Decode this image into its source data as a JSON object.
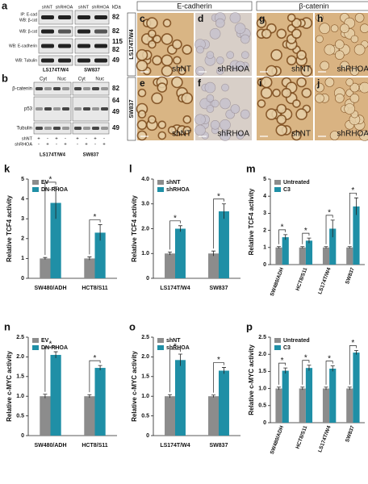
{
  "blot_a": {
    "letter": "a",
    "columns": [
      "shNT",
      "shRHOA",
      "shNT",
      "shRHOA"
    ],
    "kda_label": "kDa",
    "rows": [
      {
        "label": [
          "IP: E-cad",
          "WB: β-cat"
        ],
        "markers": [
          82
        ]
      },
      {
        "label": [
          "WB: β-cat"
        ],
        "markers": [
          82
        ]
      },
      {
        "label": [
          "WB: E-cadherin"
        ],
        "markers": [
          115,
          82
        ]
      },
      {
        "label": [
          "WB: Tubulin"
        ],
        "markers": [
          49
        ]
      }
    ],
    "cell_lines": [
      "LS174T/W4",
      "SW837"
    ]
  },
  "blot_b": {
    "letter": "b",
    "fractions": [
      "Cyt",
      "Nuc",
      "Cyt",
      "Nuc"
    ],
    "rows": [
      {
        "label": "β-catenin",
        "markers": [
          82
        ]
      },
      {
        "label": "p53",
        "markers": [
          64,
          49
        ]
      },
      {
        "label": "Tubulin",
        "markers": [
          49
        ]
      }
    ],
    "treatments": [
      {
        "name": "shNT",
        "signs": [
          "+",
          "-",
          "+",
          "-",
          "+",
          "-",
          "+",
          "-"
        ]
      },
      {
        "name": "shRHOA",
        "signs": [
          "-",
          "+",
          "-",
          "+",
          "-",
          "+",
          "-",
          "+"
        ]
      }
    ],
    "cell_lines": [
      "LS174T/W4",
      "SW837"
    ]
  },
  "micrographs": {
    "headers": [
      "E-cadherin",
      "β-catenin"
    ],
    "rows": [
      "LS174T/W4",
      "SW837"
    ],
    "panels": [
      {
        "letter": "c",
        "label": "shNT"
      },
      {
        "letter": "d",
        "label": "shRHOA"
      },
      {
        "letter": "g",
        "label": "shNT"
      },
      {
        "letter": "h",
        "label": "shRHOA"
      },
      {
        "letter": "e",
        "label": "shNT"
      },
      {
        "letter": "f",
        "label": "shRHOA"
      },
      {
        "letter": "i",
        "label": "shNT"
      },
      {
        "letter": "j",
        "label": "shRHOA"
      }
    ]
  },
  "chart_data": [
    {
      "type": "bar",
      "label": "k",
      "y_label": "Relative TCF4 activity",
      "categories": [
        "SW480/ADH",
        "HCT8/S11"
      ],
      "series": [
        {
          "name": "EV",
          "color": "#8c8c8c",
          "values": [
            1,
            1
          ],
          "errors": [
            0.05,
            0.08
          ]
        },
        {
          "name": "DN-RHOA",
          "color": "#1f8fa6",
          "values": [
            3.8,
            2.3
          ],
          "errors": [
            0.8,
            0.4
          ]
        }
      ],
      "ylim": [
        0,
        5
      ],
      "yticks": [
        0,
        1,
        2,
        3,
        4,
        5
      ],
      "annotation": "*"
    },
    {
      "type": "bar",
      "label": "l",
      "y_label": "Relative TCF4 activity",
      "categories": [
        "LS174T/W4",
        "SW837"
      ],
      "series": [
        {
          "name": "shNT",
          "color": "#8c8c8c",
          "values": [
            1,
            1
          ],
          "errors": [
            0.06,
            0.1
          ]
        },
        {
          "name": "shRHOA",
          "color": "#1f8fa6",
          "values": [
            2.0,
            2.7
          ],
          "errors": [
            0.12,
            0.3
          ]
        }
      ],
      "ylim": [
        0,
        4
      ],
      "yticks": [
        0,
        {
          "value": 1,
          "label": "1.0"
        },
        {
          "value": 2,
          "label": "2.0"
        },
        {
          "value": 3,
          "label": "3.0"
        },
        {
          "value": 4,
          "label": "4.0"
        }
      ],
      "annotation": "*"
    },
    {
      "type": "bar",
      "label": "m",
      "y_label": "Relative TCF4 activity",
      "categories": [
        "SW480/ADH",
        "HCT8/S11",
        "LS174T/W4",
        "SW837"
      ],
      "series": [
        {
          "name": "Untreated",
          "color": "#8c8c8c",
          "values": [
            1,
            1,
            1,
            1
          ],
          "errors": [
            0.05,
            0.05,
            0.05,
            0.05
          ]
        },
        {
          "name": "C3",
          "color": "#1f8fa6",
          "values": [
            1.6,
            1.4,
            2.1,
            3.4
          ],
          "errors": [
            0.15,
            0.15,
            0.5,
            0.5
          ]
        }
      ],
      "ylim": [
        0,
        5
      ],
      "yticks": [
        0,
        1,
        2,
        3,
        4,
        5
      ],
      "annotation": "*"
    },
    {
      "type": "bar",
      "label": "n",
      "y_label": "Relative c-MYC activity",
      "categories": [
        "SW480/ADH",
        "HCT8/S11"
      ],
      "series": [
        {
          "name": "EV",
          "color": "#8c8c8c",
          "values": [
            1,
            1
          ],
          "errors": [
            0.05,
            0.04
          ]
        },
        {
          "name": "DN-RHOA",
          "color": "#1f8fa6",
          "values": [
            2.05,
            1.72
          ],
          "errors": [
            0.08,
            0.06
          ]
        }
      ],
      "ylim": [
        0,
        2.5
      ],
      "yticks": [
        0,
        0.5,
        {
          "value": 1,
          "label": "1.0"
        },
        1.5,
        {
          "value": 2,
          "label": "2.0"
        },
        2.5
      ],
      "annotation": "*"
    },
    {
      "type": "bar",
      "label": "o",
      "y_label": "Relative c-MYC activity",
      "categories": [
        "LS174T/W4",
        "SW837"
      ],
      "series": [
        {
          "name": "shNT",
          "color": "#8c8c8c",
          "values": [
            1,
            1
          ],
          "errors": [
            0.04,
            0.03
          ]
        },
        {
          "name": "shRHOA",
          "color": "#1f8fa6",
          "values": [
            1.92,
            1.65
          ],
          "errors": [
            0.15,
            0.08
          ]
        }
      ],
      "ylim": [
        0,
        2.5
      ],
      "yticks": [
        0,
        0.5,
        {
          "value": 1,
          "label": "1.0"
        },
        1.5,
        {
          "value": 2,
          "label": "2.0"
        },
        2.5
      ],
      "annotation": "*"
    },
    {
      "type": "bar",
      "label": "p",
      "y_label": "Relative c-MYC activity",
      "categories": [
        "SW480/ADH",
        "HCT8/S11",
        "LS174T/W4",
        "SW837"
      ],
      "series": [
        {
          "name": "Untreated",
          "color": "#8c8c8c",
          "values": [
            1,
            1,
            1,
            1
          ],
          "errors": [
            0.04,
            0.04,
            0.04,
            0.04
          ]
        },
        {
          "name": "C3",
          "color": "#1f8fa6",
          "values": [
            1.52,
            1.6,
            1.58,
            2.05
          ],
          "errors": [
            0.08,
            0.08,
            0.08,
            0.06
          ]
        }
      ],
      "ylim": [
        0,
        2.5
      ],
      "yticks": [
        0,
        0.5,
        {
          "value": 1,
          "label": "1.0"
        },
        1.5,
        {
          "value": 2,
          "label": "2.0"
        },
        2.5
      ],
      "annotation": "*"
    }
  ]
}
